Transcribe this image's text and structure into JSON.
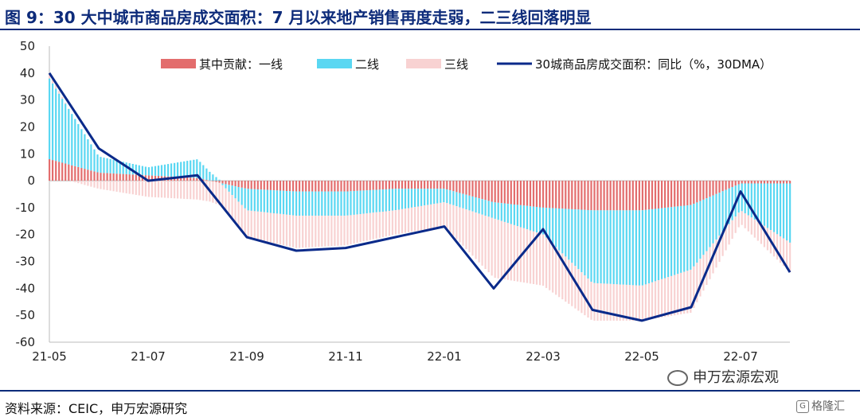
{
  "title": "图 9：30 大中城市商品房成交面积：7 月以来地产销售再度走弱，二三线回落明显",
  "source": "资料来源：CEIC，申万宏源研究",
  "watermark": "申万宏源宏观",
  "badge": "格隆汇",
  "colors": {
    "tier1": "#e36d6d",
    "tier2": "#5ad7f2",
    "tier3": "#f8d2d2",
    "total": "#0a2a8a",
    "title": "#0d2b7a"
  },
  "chart_data": {
    "type": "bar",
    "stacked": true,
    "x_tick_labels": [
      "21-05",
      "21-07",
      "21-09",
      "21-11",
      "22-01",
      "22-03",
      "22-05",
      "22-07"
    ],
    "ylim": [
      -60,
      50
    ],
    "y_ticks": [
      50,
      40,
      30,
      20,
      10,
      0,
      -10,
      -20,
      -30,
      -40,
      -50,
      -60
    ],
    "legend_position": "top",
    "x": [
      "21-05",
      "21-06",
      "21-07",
      "21-08",
      "21-09",
      "21-10",
      "21-11",
      "21-12",
      "22-01",
      "22-02",
      "22-03",
      "22-04",
      "22-05",
      "22-06",
      "22-07",
      "22-08"
    ],
    "series": [
      {
        "name": "其中贡献：一线",
        "kind": "bar",
        "values": [
          8,
          3,
          2,
          1,
          -3,
          -4,
          -4,
          -3,
          -3,
          -8,
          -10,
          -11,
          -11,
          -9,
          -1,
          -1
        ]
      },
      {
        "name": "二线",
        "kind": "bar",
        "values": [
          30,
          6,
          3,
          7,
          -8,
          -9,
          -9,
          -8,
          -5,
          -6,
          -10,
          -27,
          -28,
          -24,
          -10,
          -22
        ]
      },
      {
        "name": "三线",
        "kind": "bar",
        "values": [
          2,
          -3,
          -6,
          -7,
          -10,
          -12,
          -11,
          -9,
          -9,
          -22,
          -19,
          -14,
          -13,
          -16,
          -5,
          -11
        ]
      },
      {
        "name": "30城商品房成交面积：同比（%，30DMA）",
        "kind": "line",
        "values": [
          40,
          12,
          0,
          2,
          -21,
          -26,
          -25,
          -21,
          -17,
          -40,
          -18,
          -48,
          -52,
          -47,
          -4,
          -34
        ]
      }
    ]
  }
}
